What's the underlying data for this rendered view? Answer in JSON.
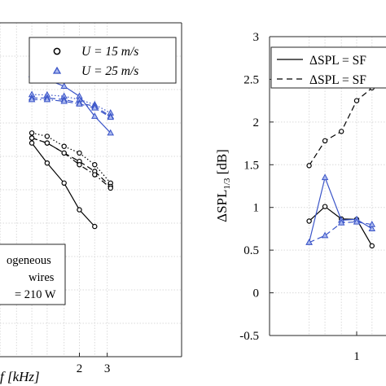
{
  "chart_data": [
    {
      "type": "line",
      "xlabel": "f [kHz]",
      "xscale": "log",
      "xticks": [
        2,
        3
      ],
      "ylabel": "",
      "grid": true,
      "legend": {
        "placement": "top-right",
        "entries": [
          {
            "label": "U = 15 m/s",
            "marker": "circle",
            "color": "#000000"
          },
          {
            "label": "U = 25 m/s",
            "marker": "triangle",
            "color": "#3b55c8"
          }
        ]
      },
      "annotation": [
        "ogeneous",
        "wires",
        "= 210 W"
      ],
      "x": [
        0.5,
        0.63,
        0.8,
        1.0,
        1.25,
        1.6,
        2.0,
        2.5,
        3.15
      ],
      "series": [
        {
          "color": "#000000",
          "marker": "circle",
          "style": "solid",
          "values": [
            null,
            null,
            null,
            0.64,
            0.58,
            0.52,
            0.44,
            0.39,
            null
          ]
        },
        {
          "color": "#000000",
          "marker": "circle",
          "style": "dotted",
          "values": [
            null,
            null,
            null,
            0.67,
            0.66,
            0.63,
            0.61,
            0.575,
            0.52
          ]
        },
        {
          "color": "#000000",
          "marker": "circle",
          "style": "dashed",
          "values": [
            null,
            null,
            null,
            0.655,
            0.64,
            0.61,
            0.585,
            0.555,
            0.51
          ]
        },
        {
          "color": "#000000",
          "marker": "circle",
          "style": "dashdot",
          "values": [
            null,
            null,
            null,
            0.655,
            0.64,
            0.61,
            0.575,
            0.545,
            0.505
          ]
        },
        {
          "color": "#3b55c8",
          "marker": "triangle",
          "style": "solid",
          "values": [
            null,
            null,
            null,
            0.845,
            0.83,
            0.81,
            0.78,
            0.72,
            0.67
          ]
        },
        {
          "color": "#3b55c8",
          "marker": "triangle",
          "style": "dotted",
          "values": [
            null,
            null,
            null,
            0.785,
            0.784,
            0.78,
            0.77,
            0.755,
            0.73
          ]
        },
        {
          "color": "#3b55c8",
          "marker": "triangle",
          "style": "dashed",
          "values": [
            null,
            null,
            null,
            0.775,
            0.775,
            0.77,
            0.76,
            0.75,
            0.72
          ]
        },
        {
          "color": "#3b55c8",
          "marker": "triangle",
          "style": "dashdot",
          "values": [
            null,
            null,
            null,
            0.77,
            0.77,
            0.765,
            0.757,
            0.745,
            0.717
          ]
        }
      ]
    },
    {
      "type": "line",
      "xlabel": "",
      "xscale": "log",
      "xticks": [
        1
      ],
      "ylabel": "ΔSPL1/3 [dB]",
      "ylim": [
        -0.5,
        3
      ],
      "yticks": [
        -0.5,
        0,
        0.5,
        1,
        1.5,
        2,
        2.5,
        3
      ],
      "grid": true,
      "legend": {
        "placement": "top-right",
        "entries": [
          {
            "label": "ΔSPL = SF",
            "style": "solid"
          },
          {
            "label": "ΔSPL = SF",
            "style": "dashed"
          }
        ]
      },
      "x": [
        0.5,
        0.63,
        0.8,
        1.0,
        1.25
      ],
      "series": [
        {
          "color": "#000000",
          "marker": "circle",
          "style": "solid",
          "values": [
            0.84,
            1.01,
            0.865,
            0.86,
            0.55
          ]
        },
        {
          "color": "#000000",
          "marker": "circle",
          "style": "dashed",
          "values": [
            1.49,
            1.78,
            1.89,
            2.25,
            2.4
          ]
        },
        {
          "color": "#3b55c8",
          "marker": "triangle",
          "style": "solid",
          "values": [
            0.59,
            1.35,
            0.85,
            0.86,
            0.75
          ]
        },
        {
          "color": "#3b55c8",
          "marker": "triangle",
          "style": "dashed",
          "values": [
            0.59,
            0.67,
            0.82,
            0.83,
            0.8
          ]
        }
      ]
    }
  ]
}
